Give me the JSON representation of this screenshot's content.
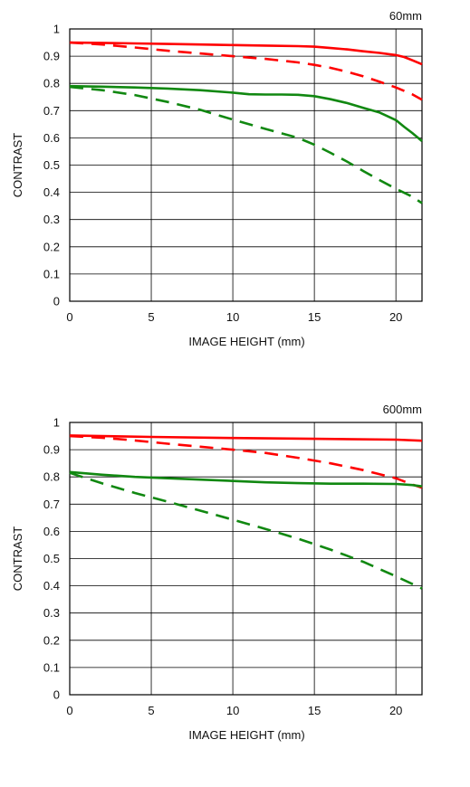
{
  "chart_data": [
    {
      "type": "line",
      "title": "60mm",
      "xlabel": "IMAGE HEIGHT (mm)",
      "ylabel": "CONTRAST",
      "xlim": [
        0,
        21.6
      ],
      "ylim": [
        0,
        1
      ],
      "xticks": [
        0,
        5,
        10,
        15,
        20
      ],
      "xtick_labels": [
        "0",
        "5",
        "10",
        "15",
        "20"
      ],
      "yticks": [
        0,
        0.1,
        0.2,
        0.3,
        0.4,
        0.5,
        0.6,
        0.7,
        0.8,
        0.9,
        1
      ],
      "ytick_labels": [
        "0",
        "0.1",
        "0.2",
        "0.3",
        "0.4",
        "0.5",
        "0.6",
        "0.7",
        "0.8",
        "0.9",
        "1"
      ],
      "grid": true,
      "series": [
        {
          "color": "#ff0000",
          "style": "solid",
          "x": [
            0,
            2,
            4,
            6,
            8,
            10,
            12,
            14,
            15,
            16,
            17,
            18,
            19,
            20,
            20.5,
            21,
            21.6
          ],
          "y": [
            0.95,
            0.949,
            0.947,
            0.945,
            0.943,
            0.941,
            0.939,
            0.937,
            0.935,
            0.93,
            0.925,
            0.918,
            0.912,
            0.904,
            0.897,
            0.885,
            0.87
          ]
        },
        {
          "color": "#ff0000",
          "style": "dashed",
          "x": [
            0,
            2,
            4,
            6,
            8,
            10,
            12,
            14,
            15,
            16,
            17,
            18,
            19,
            20,
            21,
            21.6
          ],
          "y": [
            0.95,
            0.943,
            0.932,
            0.92,
            0.91,
            0.9,
            0.89,
            0.877,
            0.868,
            0.857,
            0.843,
            0.826,
            0.806,
            0.785,
            0.76,
            0.74
          ]
        },
        {
          "color": "#118811",
          "style": "solid",
          "x": [
            0,
            2,
            4,
            6,
            8,
            10,
            11,
            12,
            13,
            14,
            15,
            16,
            17,
            18,
            19,
            20,
            20.5,
            21,
            21.6
          ],
          "y": [
            0.79,
            0.788,
            0.785,
            0.781,
            0.775,
            0.766,
            0.76,
            0.759,
            0.759,
            0.758,
            0.753,
            0.742,
            0.728,
            0.71,
            0.693,
            0.665,
            0.641,
            0.618,
            0.588
          ]
        },
        {
          "color": "#118811",
          "style": "dashed",
          "x": [
            0,
            2,
            4,
            6,
            8,
            10,
            12,
            14,
            15,
            16,
            17,
            18,
            19,
            20,
            21,
            21.6
          ],
          "y": [
            0.787,
            0.775,
            0.757,
            0.732,
            0.703,
            0.667,
            0.633,
            0.6,
            0.575,
            0.545,
            0.513,
            0.478,
            0.445,
            0.413,
            0.384,
            0.36
          ]
        }
      ]
    },
    {
      "type": "line",
      "title": "600mm",
      "xlabel": "IMAGE HEIGHT (mm)",
      "ylabel": "CONTRAST",
      "xlim": [
        0,
        21.6
      ],
      "ylim": [
        0,
        1
      ],
      "xticks": [
        0,
        5,
        10,
        15,
        20
      ],
      "xtick_labels": [
        "0",
        "5",
        "10",
        "15",
        "20"
      ],
      "yticks": [
        0,
        0.1,
        0.2,
        0.3,
        0.4,
        0.5,
        0.6,
        0.7,
        0.8,
        0.9,
        1
      ],
      "ytick_labels": [
        "0",
        "0.1",
        "0.2",
        "0.3",
        "0.4",
        "0.5",
        "0.6",
        "0.7",
        "0.8",
        "0.9",
        "1"
      ],
      "grid": true,
      "series": [
        {
          "color": "#ff0000",
          "style": "solid",
          "x": [
            0,
            5,
            10,
            15,
            20,
            21.6
          ],
          "y": [
            0.952,
            0.947,
            0.943,
            0.94,
            0.937,
            0.933
          ]
        },
        {
          "color": "#ff0000",
          "style": "dashed",
          "x": [
            0,
            2,
            4,
            6,
            8,
            10,
            12,
            14,
            16,
            18,
            20,
            21,
            21.6
          ],
          "y": [
            0.95,
            0.944,
            0.934,
            0.922,
            0.911,
            0.9,
            0.888,
            0.87,
            0.85,
            0.825,
            0.795,
            0.772,
            0.76
          ]
        },
        {
          "color": "#118811",
          "style": "solid",
          "x": [
            0,
            2,
            4,
            6,
            8,
            10,
            12,
            14,
            16,
            18,
            20,
            21,
            21.6
          ],
          "y": [
            0.818,
            0.808,
            0.8,
            0.795,
            0.79,
            0.785,
            0.78,
            0.777,
            0.775,
            0.775,
            0.774,
            0.77,
            0.765
          ]
        },
        {
          "color": "#118811",
          "style": "dashed",
          "x": [
            0,
            2,
            4,
            6,
            8,
            10,
            12,
            14,
            16,
            18,
            20,
            21.6
          ],
          "y": [
            0.815,
            0.776,
            0.741,
            0.709,
            0.676,
            0.643,
            0.609,
            0.573,
            0.533,
            0.488,
            0.435,
            0.39
          ]
        }
      ]
    }
  ]
}
